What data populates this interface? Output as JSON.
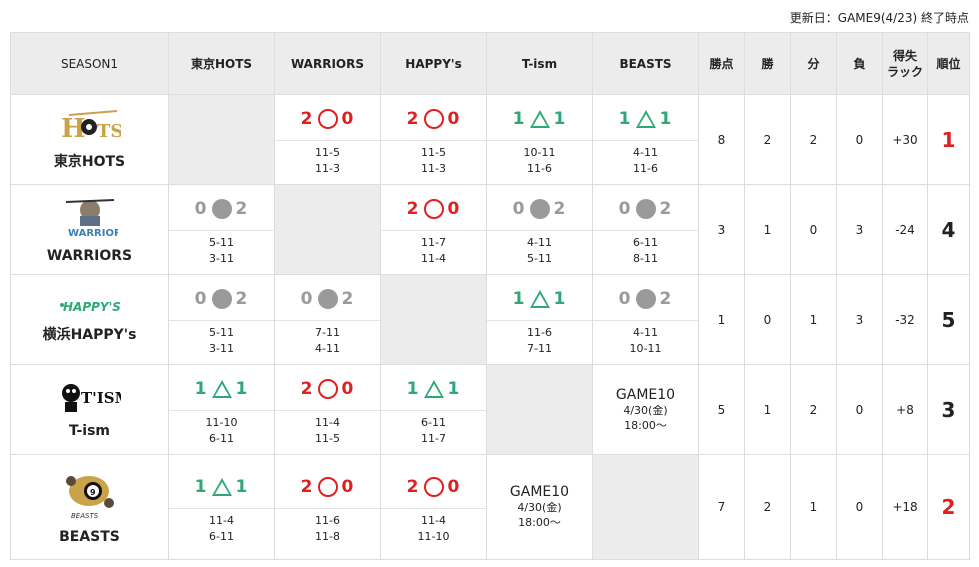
{
  "updated_label": "更新日：GAME9(4/23) 終了時点",
  "headers": {
    "season": "SEASON1",
    "cols": [
      "東京HOTS",
      "WARRIORS",
      "HAPPY's",
      "T-ism",
      "BEASTS"
    ],
    "points": "勝点",
    "wins": "勝",
    "draws": "分",
    "losses": "負",
    "diff": "得失\nラック",
    "rank": "順位"
  },
  "rows": [
    {
      "team": "東京HOTS",
      "logo_icon": "hots-logo-icon",
      "cells": [
        {
          "type": "self"
        },
        {
          "type": "result",
          "result": "win",
          "left": "2",
          "right": "0",
          "scores": [
            "11-5",
            "11-3"
          ]
        },
        {
          "type": "result",
          "result": "win",
          "left": "2",
          "right": "0",
          "scores": [
            "11-5",
            "11-3"
          ]
        },
        {
          "type": "result",
          "result": "draw",
          "left": "1",
          "right": "1",
          "scores": [
            "10-11",
            "11-6"
          ]
        },
        {
          "type": "result",
          "result": "draw",
          "left": "1",
          "right": "1",
          "scores": [
            "4-11",
            "11-6"
          ]
        }
      ],
      "points": "8",
      "wins": "2",
      "draws": "2",
      "losses": "0",
      "diff": "+30",
      "rank": "1"
    },
    {
      "team": "WARRIORS",
      "logo_icon": "warriors-logo-icon",
      "cells": [
        {
          "type": "result",
          "result": "lose",
          "left": "0",
          "right": "2",
          "scores": [
            "5-11",
            "3-11"
          ]
        },
        {
          "type": "self"
        },
        {
          "type": "result",
          "result": "win",
          "left": "2",
          "right": "0",
          "scores": [
            "11-7",
            "11-4"
          ]
        },
        {
          "type": "result",
          "result": "lose",
          "left": "0",
          "right": "2",
          "scores": [
            "4-11",
            "5-11"
          ]
        },
        {
          "type": "result",
          "result": "lose",
          "left": "0",
          "right": "2",
          "scores": [
            "6-11",
            "8-11"
          ]
        }
      ],
      "points": "3",
      "wins": "1",
      "draws": "0",
      "losses": "3",
      "diff": "-24",
      "rank": "4"
    },
    {
      "team": "横浜HAPPY's",
      "logo_icon": "happys-logo-icon",
      "cells": [
        {
          "type": "result",
          "result": "lose",
          "left": "0",
          "right": "2",
          "scores": [
            "5-11",
            "3-11"
          ]
        },
        {
          "type": "result",
          "result": "lose",
          "left": "0",
          "right": "2",
          "scores": [
            "7-11",
            "4-11"
          ]
        },
        {
          "type": "self"
        },
        {
          "type": "result",
          "result": "draw",
          "left": "1",
          "right": "1",
          "scores": [
            "11-6",
            "7-11"
          ]
        },
        {
          "type": "result",
          "result": "lose",
          "left": "0",
          "right": "2",
          "scores": [
            "4-11",
            "10-11"
          ]
        }
      ],
      "points": "1",
      "wins": "0",
      "draws": "1",
      "losses": "3",
      "diff": "-32",
      "rank": "5"
    },
    {
      "team": "T-ism",
      "logo_icon": "tism-logo-icon",
      "cells": [
        {
          "type": "result",
          "result": "draw",
          "left": "1",
          "right": "1",
          "scores": [
            "11-10",
            "6-11"
          ]
        },
        {
          "type": "result",
          "result": "win",
          "left": "2",
          "right": "0",
          "scores": [
            "11-4",
            "11-5"
          ]
        },
        {
          "type": "result",
          "result": "draw",
          "left": "1",
          "right": "1",
          "scores": [
            "6-11",
            "11-7"
          ]
        },
        {
          "type": "self"
        },
        {
          "type": "future",
          "game": "GAME10",
          "date": "4/30(金)",
          "time": "18:00〜"
        }
      ],
      "points": "5",
      "wins": "1",
      "draws": "2",
      "losses": "0",
      "diff": "+8",
      "rank": "3"
    },
    {
      "team": "BEASTS",
      "logo_icon": "beasts-logo-icon",
      "cells": [
        {
          "type": "result",
          "result": "draw",
          "left": "1",
          "right": "1",
          "scores": [
            "11-4",
            "6-11"
          ]
        },
        {
          "type": "result",
          "result": "win",
          "left": "2",
          "right": "0",
          "scores": [
            "11-6",
            "11-8"
          ]
        },
        {
          "type": "result",
          "result": "win",
          "left": "2",
          "right": "0",
          "scores": [
            "11-4",
            "11-10"
          ]
        },
        {
          "type": "future",
          "game": "GAME10",
          "date": "4/30(金)",
          "time": "18:00〜"
        },
        {
          "type": "self"
        }
      ],
      "points": "7",
      "wins": "2",
      "draws": "1",
      "losses": "0",
      "diff": "+18",
      "rank": "2"
    }
  ]
}
